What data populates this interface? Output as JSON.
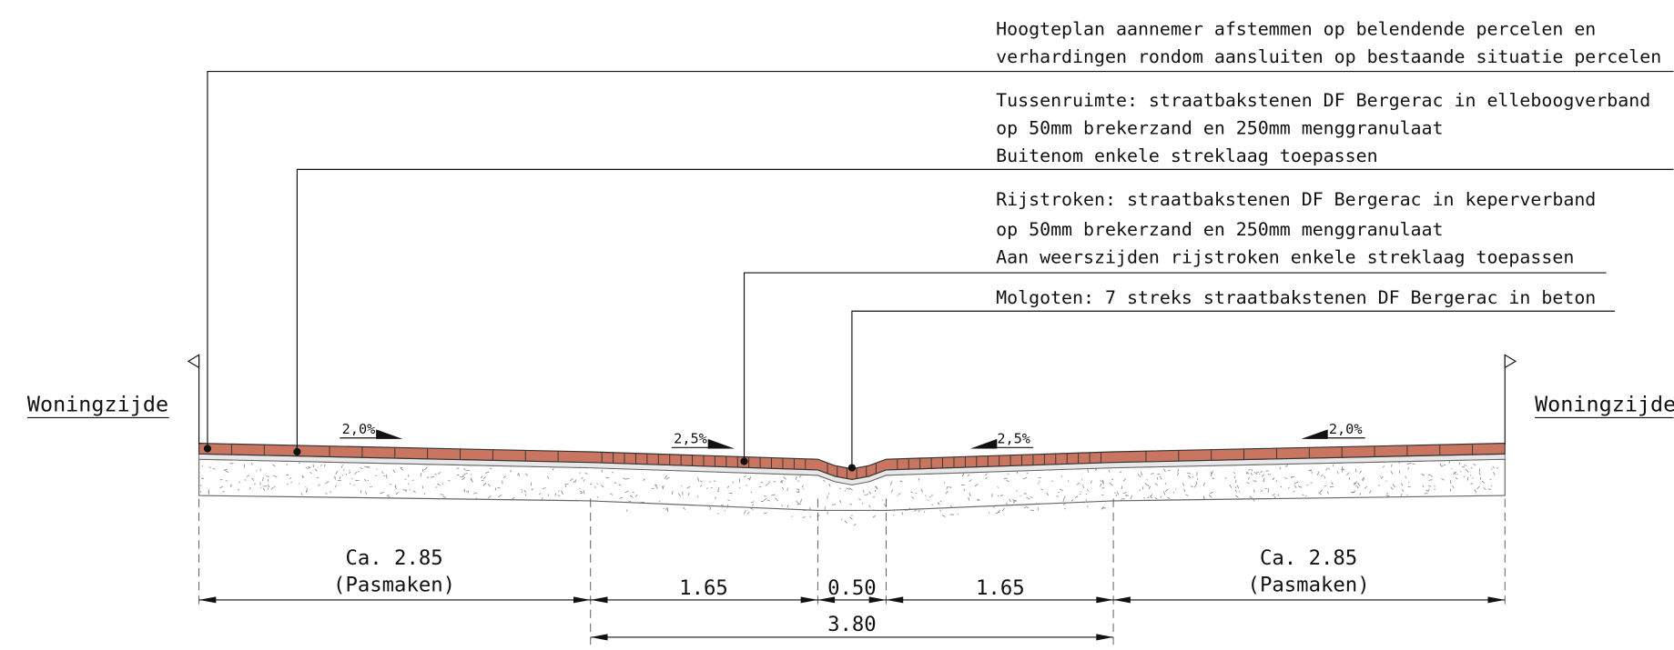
{
  "side_labels": [
    "Woningzijde",
    "Woningzijde"
  ],
  "notes": [
    {
      "lines": [
        "Hoogteplan aannemer afstemmen op belendende percelen en",
        "verhardingen rondom aansluiten op bestaande situatie percelen"
      ]
    },
    {
      "lines": [
        "Tussenruimte: straatbakstenen DF Bergerac in elleboogverband",
        "op 50mm brekerzand en 250mm menggranulaat",
        "Buitenom enkele streklaag toepassen"
      ]
    },
    {
      "lines": [
        "Rijstroken: straatbakstenen DF Bergerac in keperverband",
        "op 50mm brekerzand en 250mm menggranulaat",
        "Aan weerszijden rijstroken enkele streklaag toepassen"
      ]
    },
    {
      "lines": [
        "Molgoten: 7 streks straatbakstenen DF Bergerac in beton"
      ]
    }
  ],
  "slopes": [
    "2,0%",
    "2,5%",
    "2,5%",
    "2,0%"
  ],
  "dimensions": [
    {
      "lines": [
        "Ca. 2.85",
        "(Pasmaken)"
      ]
    },
    {
      "lines": [
        "1.65"
      ]
    },
    {
      "lines": [
        "0.50"
      ]
    },
    {
      "lines": [
        "1.65"
      ]
    },
    {
      "lines": [
        "Ca. 2.85",
        "(Pasmaken)"
      ]
    },
    {
      "lines": [
        "3.80"
      ]
    }
  ]
}
